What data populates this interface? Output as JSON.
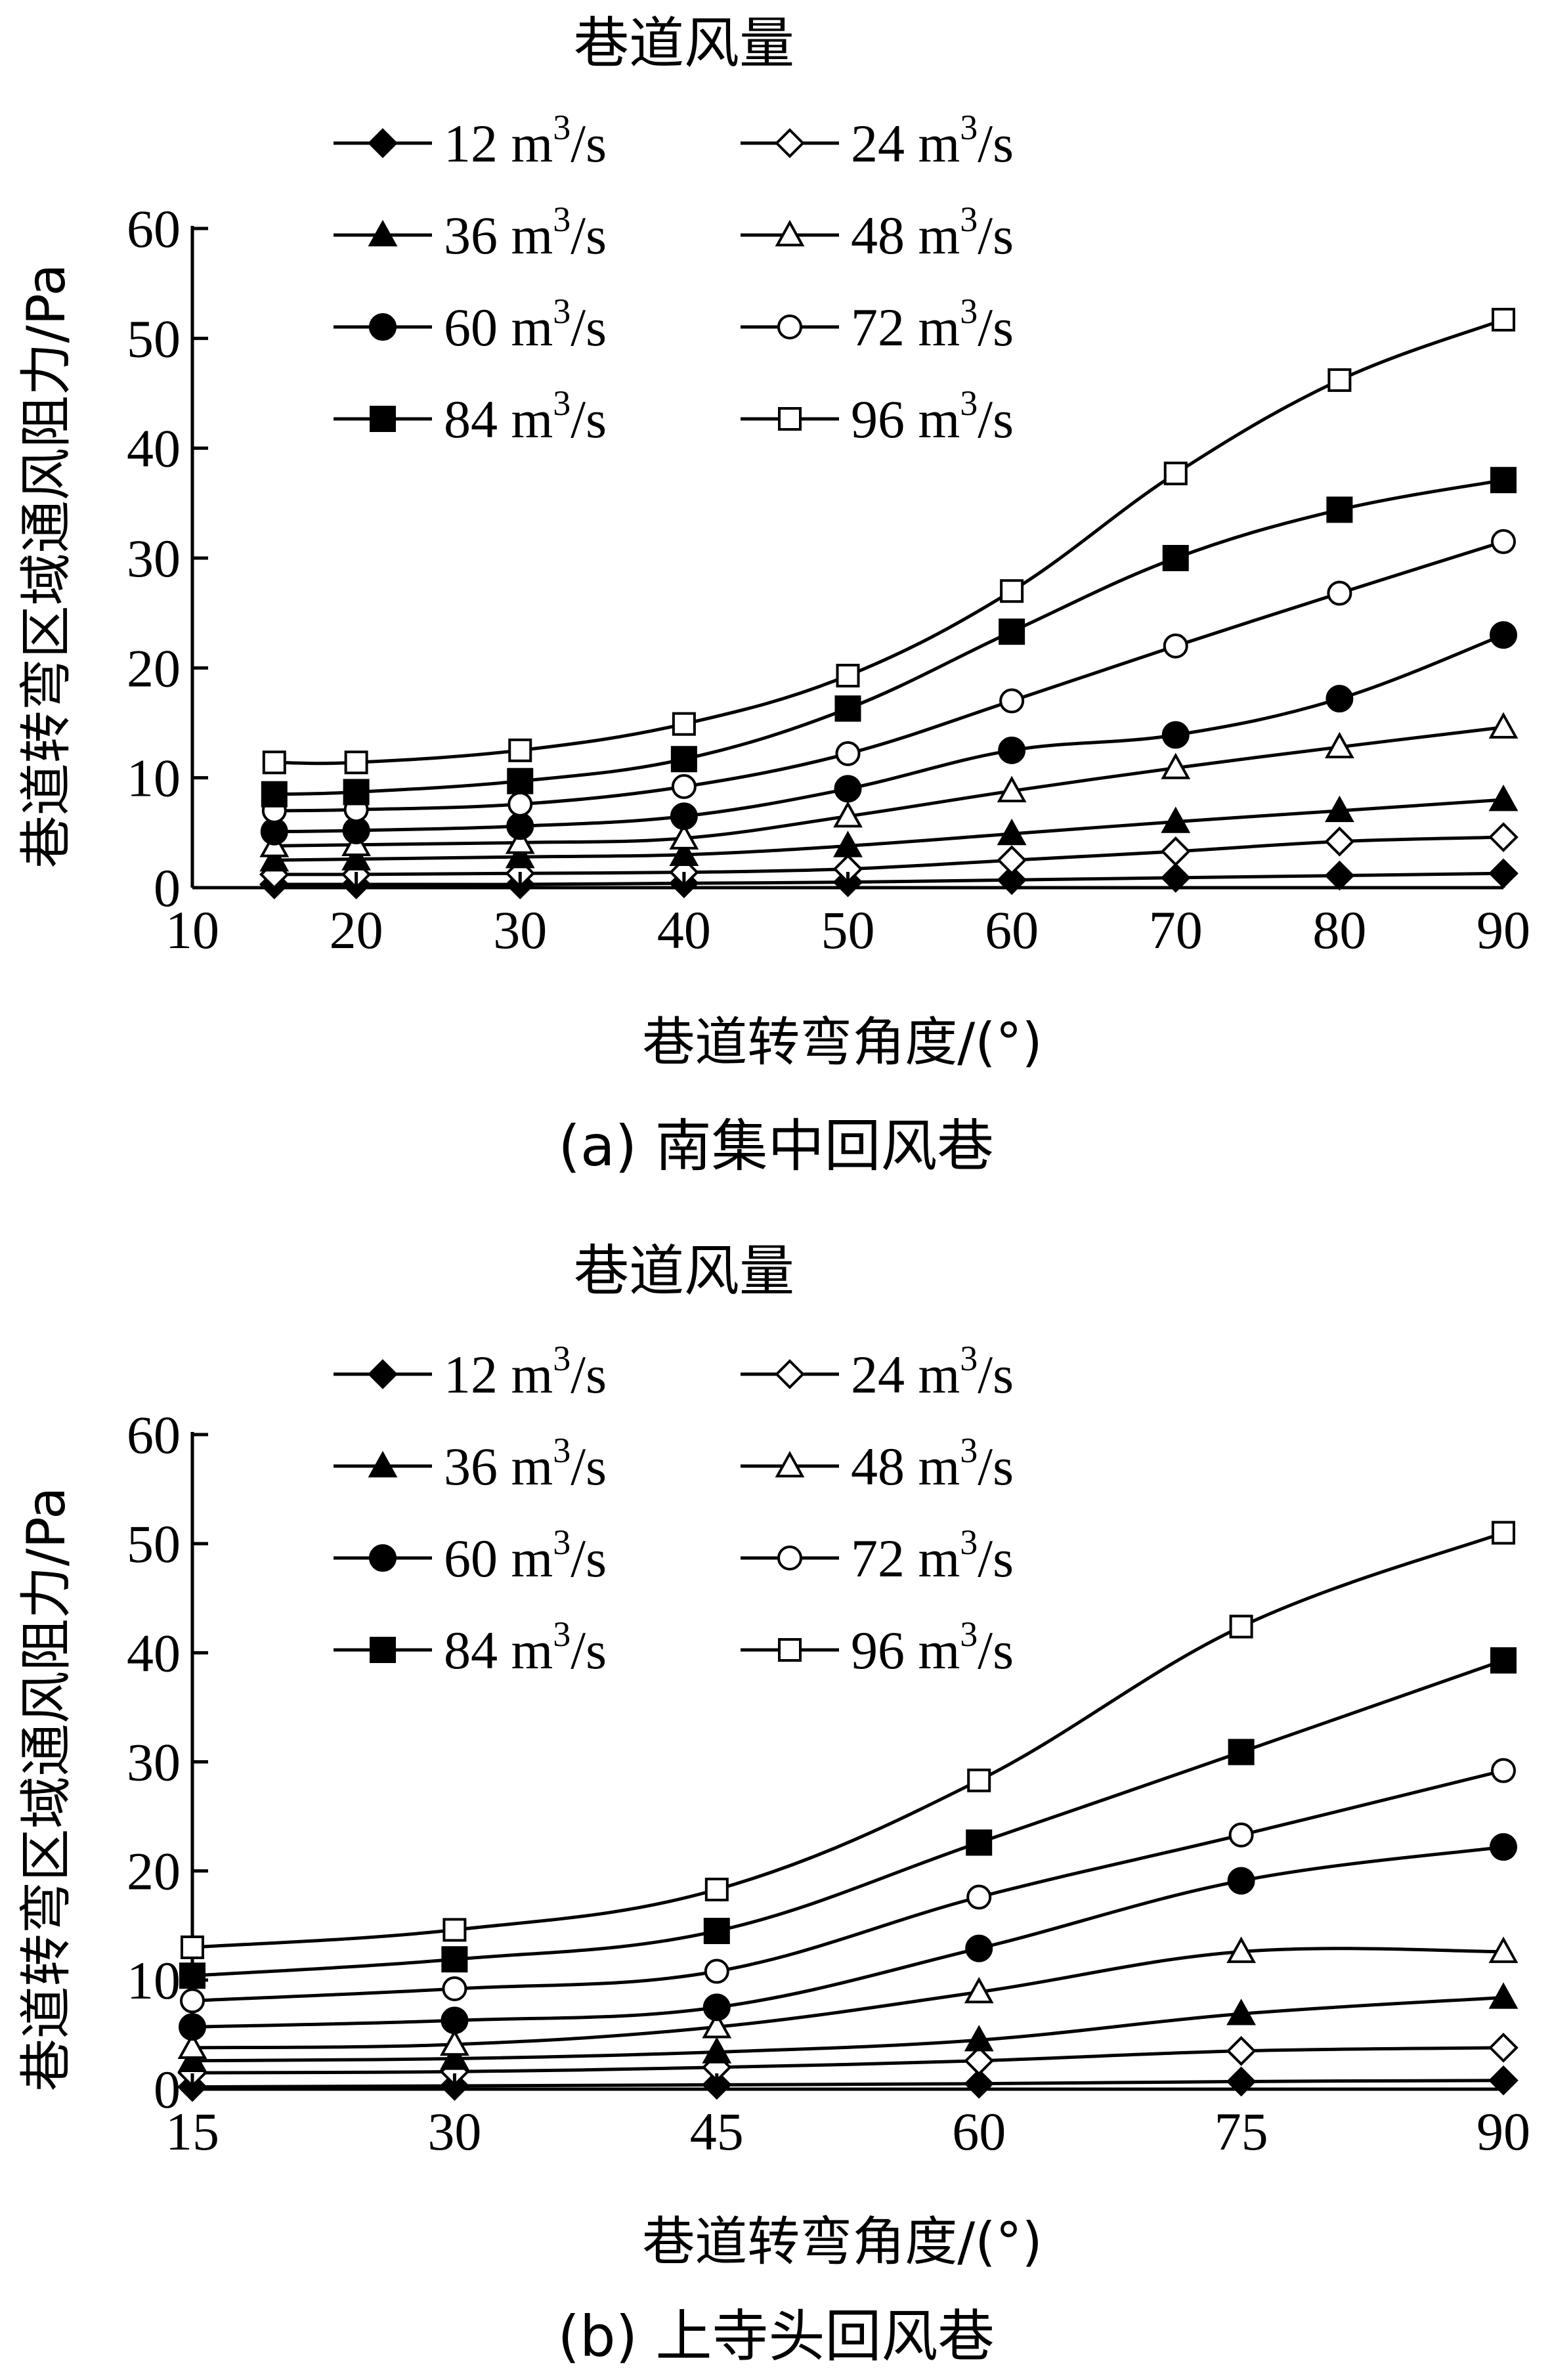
{
  "chart_data": [
    {
      "type": "line",
      "legend_title": "巷道风量",
      "caption": "(a) 南集中回风巷",
      "xlabel": "巷道转弯角度/(°)",
      "ylabel": "巷道转弯区域通风阻力/Pa",
      "xlim": [
        10,
        90
      ],
      "ylim": [
        0,
        60
      ],
      "xticks": [
        10,
        20,
        30,
        40,
        50,
        60,
        70,
        80,
        90
      ],
      "yticks": [
        0,
        10,
        20,
        30,
        40,
        50,
        60
      ],
      "x": [
        15,
        20,
        30,
        40,
        50,
        60,
        70,
        80,
        90
      ],
      "legend_position": "top",
      "series": [
        {
          "name": "12 m³/s",
          "num": "12",
          "marker": "diamond",
          "filled": true,
          "values": [
            0.3,
            0.3,
            0.3,
            0.4,
            0.5,
            0.7,
            0.9,
            1.1,
            1.3
          ]
        },
        {
          "name": "24 m³/s",
          "num": "24",
          "marker": "diamond",
          "filled": false,
          "values": [
            1.2,
            1.2,
            1.3,
            1.4,
            1.7,
            2.5,
            3.3,
            4.2,
            4.6
          ]
        },
        {
          "name": "36 m³/s",
          "num": "36",
          "marker": "triangle",
          "filled": true,
          "values": [
            2.5,
            2.6,
            2.8,
            3.0,
            3.8,
            4.9,
            6.0,
            7.0,
            8.0
          ]
        },
        {
          "name": "48 m³/s",
          "num": "48",
          "marker": "triangle",
          "filled": false,
          "values": [
            3.8,
            3.9,
            4.1,
            4.5,
            6.5,
            8.8,
            10.9,
            12.8,
            14.6
          ]
        },
        {
          "name": "60 m³/s",
          "num": "60",
          "marker": "circle",
          "filled": true,
          "values": [
            5.1,
            5.2,
            5.6,
            6.5,
            9.0,
            12.5,
            13.9,
            17.2,
            23.0
          ]
        },
        {
          "name": "72 m³/s",
          "num": "72",
          "marker": "circle",
          "filled": false,
          "values": [
            7.0,
            7.1,
            7.6,
            9.2,
            12.2,
            17.0,
            22.0,
            26.8,
            31.5
          ]
        },
        {
          "name": "84 m³/s",
          "num": "84",
          "marker": "square",
          "filled": true,
          "values": [
            8.5,
            8.7,
            9.7,
            11.7,
            16.3,
            23.3,
            30.0,
            34.4,
            37.1
          ]
        },
        {
          "name": "96 m³/s",
          "num": "96",
          "marker": "square",
          "filled": false,
          "values": [
            11.4,
            11.4,
            12.5,
            14.9,
            19.3,
            27.0,
            37.7,
            46.2,
            51.7
          ]
        }
      ]
    },
    {
      "type": "line",
      "legend_title": "巷道风量",
      "caption": "(b) 上寺头回风巷",
      "xlabel": "巷道转弯角度/(°)",
      "ylabel": "巷道转弯区域通风阻力/Pa",
      "xlim": [
        15,
        90
      ],
      "ylim": [
        0,
        60
      ],
      "xticks": [
        15,
        30,
        45,
        60,
        75,
        90
      ],
      "yticks": [
        0,
        10,
        20,
        30,
        40,
        50,
        60
      ],
      "x": [
        15,
        30,
        45,
        60,
        75,
        90
      ],
      "legend_position": "top",
      "series": [
        {
          "name": "12 m³/s",
          "num": "12",
          "marker": "diamond",
          "filled": true,
          "values": [
            0.2,
            0.3,
            0.4,
            0.5,
            0.7,
            0.8
          ]
        },
        {
          "name": "24 m³/s",
          "num": "24",
          "marker": "diamond",
          "filled": false,
          "values": [
            1.5,
            1.6,
            2.0,
            2.6,
            3.5,
            3.8
          ]
        },
        {
          "name": "36 m³/s",
          "num": "36",
          "marker": "triangle",
          "filled": true,
          "values": [
            2.6,
            2.8,
            3.4,
            4.5,
            6.9,
            8.4
          ]
        },
        {
          "name": "48 m³/s",
          "num": "48",
          "marker": "triangle",
          "filled": false,
          "values": [
            3.8,
            4.1,
            5.7,
            8.9,
            12.6,
            12.6
          ]
        },
        {
          "name": "60 m³/s",
          "num": "60",
          "marker": "circle",
          "filled": true,
          "values": [
            5.7,
            6.3,
            7.5,
            12.9,
            19.1,
            22.2
          ]
        },
        {
          "name": "72 m³/s",
          "num": "72",
          "marker": "circle",
          "filled": false,
          "values": [
            8.1,
            9.2,
            10.8,
            17.6,
            23.3,
            29.2
          ]
        },
        {
          "name": "84 m³/s",
          "num": "84",
          "marker": "square",
          "filled": true,
          "values": [
            10.4,
            11.9,
            14.5,
            22.6,
            30.9,
            39.3
          ]
        },
        {
          "name": "96 m³/s",
          "num": "96",
          "marker": "square",
          "filled": false,
          "values": [
            13.0,
            14.6,
            18.3,
            28.3,
            42.4,
            51.0
          ]
        }
      ]
    }
  ]
}
